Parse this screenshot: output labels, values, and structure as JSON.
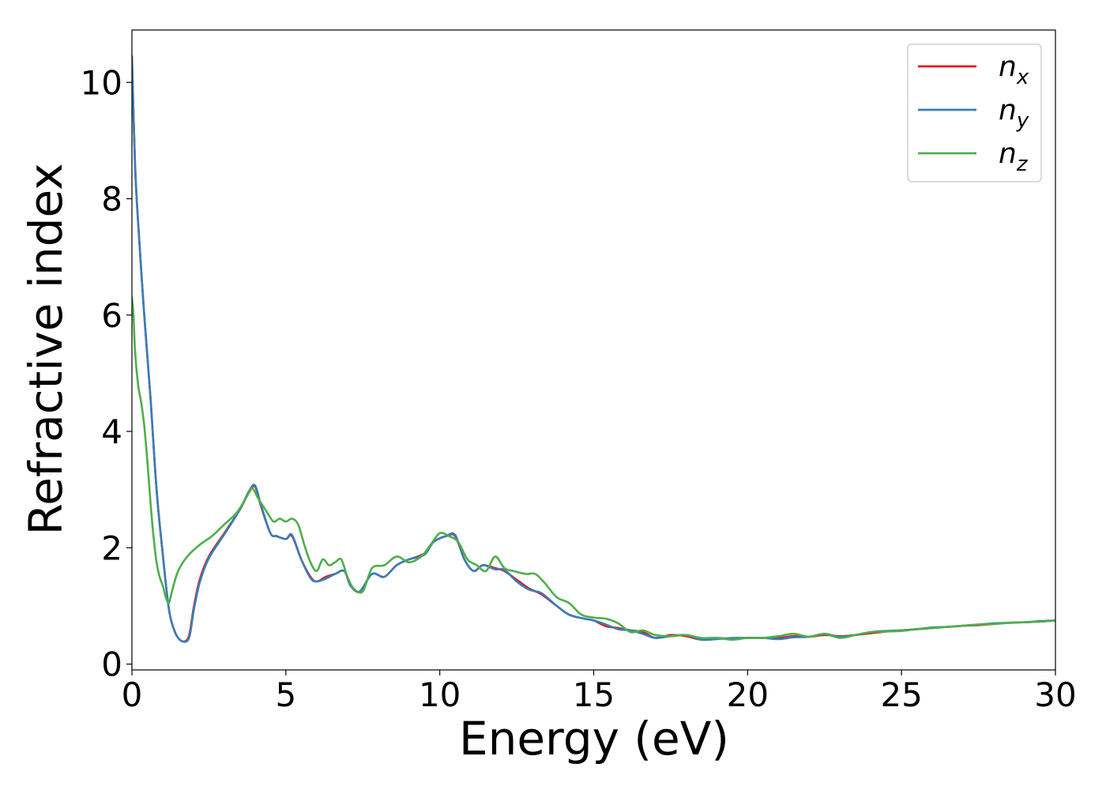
{
  "chart_data": {
    "type": "line",
    "title": "",
    "xlabel": "Energy (eV)",
    "ylabel": "Refractive index",
    "xlim": [
      0,
      30
    ],
    "ylim": [
      -0.1,
      10.9
    ],
    "grid": false,
    "legend_position": "top-right",
    "x_ticks": [
      0,
      5,
      10,
      15,
      20,
      25,
      30
    ],
    "x_tick_labels": [
      "0",
      "5",
      "10",
      "15",
      "20",
      "25",
      "30"
    ],
    "y_ticks": [
      0,
      2,
      4,
      6,
      8,
      10
    ],
    "y_tick_labels": [
      "0",
      "2",
      "4",
      "6",
      "8",
      "10"
    ],
    "series": [
      {
        "name": "n",
        "subscript": "x",
        "color": "#e41a1c",
        "x": [
          0.0,
          0.1,
          0.2,
          0.4,
          0.6,
          0.8,
          1.0,
          1.2,
          1.4,
          1.6,
          1.8,
          1.9,
          2.0,
          2.2,
          2.5,
          3.0,
          3.5,
          3.8,
          4.0,
          4.2,
          4.5,
          4.7,
          5.0,
          5.2,
          5.5,
          5.8,
          6.0,
          6.3,
          6.6,
          6.9,
          7.1,
          7.4,
          7.8,
          8.2,
          8.6,
          9.0,
          9.5,
          9.8,
          10.2,
          10.5,
          10.8,
          11.1,
          11.4,
          11.8,
          12.1,
          12.5,
          12.9,
          13.3,
          13.8,
          14.2,
          14.7,
          15.0,
          15.4,
          15.8,
          16.2,
          16.6,
          17.0,
          17.5,
          18.0,
          18.5,
          19.0,
          19.5,
          20.0,
          20.5,
          21.0,
          21.5,
          22.0,
          22.5,
          23.0,
          23.5,
          24.0,
          24.5,
          25.0,
          25.5,
          26.0,
          26.5,
          27.0,
          27.5,
          28.0,
          28.5,
          29.0,
          29.5,
          30.0
        ],
        "values": [
          10.45,
          8.6,
          7.6,
          6.0,
          4.6,
          3.0,
          1.9,
          0.95,
          0.55,
          0.4,
          0.42,
          0.6,
          0.95,
          1.45,
          1.85,
          2.25,
          2.65,
          2.95,
          3.05,
          2.7,
          2.25,
          2.2,
          2.15,
          2.2,
          1.8,
          1.5,
          1.42,
          1.5,
          1.55,
          1.6,
          1.35,
          1.25,
          1.55,
          1.5,
          1.7,
          1.8,
          1.9,
          2.1,
          2.2,
          2.2,
          1.8,
          1.6,
          1.7,
          1.65,
          1.6,
          1.45,
          1.3,
          1.2,
          1.0,
          0.85,
          0.78,
          0.75,
          0.65,
          0.62,
          0.58,
          0.55,
          0.45,
          0.5,
          0.48,
          0.42,
          0.45,
          0.43,
          0.45,
          0.45,
          0.45,
          0.48,
          0.47,
          0.5,
          0.48,
          0.5,
          0.53,
          0.56,
          0.58,
          0.6,
          0.62,
          0.64,
          0.66,
          0.67,
          0.69,
          0.71,
          0.72,
          0.73,
          0.75
        ]
      },
      {
        "name": "n",
        "subscript": "y",
        "color": "#377eb8",
        "x": [
          0.0,
          0.1,
          0.2,
          0.4,
          0.6,
          0.8,
          1.0,
          1.2,
          1.4,
          1.6,
          1.8,
          1.9,
          2.0,
          2.2,
          2.5,
          3.0,
          3.5,
          3.8,
          4.0,
          4.2,
          4.5,
          4.7,
          5.0,
          5.2,
          5.5,
          5.8,
          6.0,
          6.3,
          6.6,
          6.9,
          7.1,
          7.4,
          7.8,
          8.2,
          8.6,
          9.0,
          9.5,
          9.8,
          10.2,
          10.5,
          10.8,
          11.1,
          11.4,
          11.8,
          12.1,
          12.5,
          12.9,
          13.3,
          13.8,
          14.2,
          14.7,
          15.0,
          15.4,
          15.8,
          16.2,
          16.6,
          17.0,
          17.5,
          18.0,
          18.5,
          19.0,
          19.5,
          20.0,
          20.5,
          21.0,
          21.5,
          22.0,
          22.5,
          23.0,
          23.5,
          24.0,
          24.5,
          25.0,
          25.5,
          26.0,
          26.5,
          27.0,
          27.5,
          28.0,
          28.5,
          29.0,
          29.5,
          30.0
        ],
        "values": [
          10.45,
          8.6,
          7.6,
          6.0,
          4.6,
          3.0,
          1.9,
          0.95,
          0.55,
          0.4,
          0.4,
          0.55,
          0.9,
          1.4,
          1.82,
          2.23,
          2.65,
          2.97,
          3.07,
          2.72,
          2.25,
          2.2,
          2.15,
          2.22,
          1.8,
          1.48,
          1.42,
          1.47,
          1.55,
          1.6,
          1.35,
          1.25,
          1.55,
          1.5,
          1.7,
          1.8,
          1.88,
          2.1,
          2.2,
          2.22,
          1.8,
          1.6,
          1.7,
          1.63,
          1.62,
          1.42,
          1.28,
          1.22,
          1.0,
          0.85,
          0.78,
          0.75,
          0.68,
          0.6,
          0.58,
          0.52,
          0.45,
          0.48,
          0.5,
          0.42,
          0.43,
          0.45,
          0.45,
          0.45,
          0.43,
          0.46,
          0.47,
          0.52,
          0.47,
          0.5,
          0.55,
          0.57,
          0.58,
          0.6,
          0.63,
          0.64,
          0.66,
          0.68,
          0.7,
          0.71,
          0.72,
          0.74,
          0.75
        ]
      },
      {
        "name": "n",
        "subscript": "z",
        "color": "#4daf4a",
        "x": [
          0.0,
          0.05,
          0.1,
          0.2,
          0.3,
          0.4,
          0.5,
          0.6,
          0.7,
          0.8,
          0.9,
          1.0,
          1.1,
          1.2,
          1.3,
          1.5,
          1.8,
          2.2,
          2.6,
          3.0,
          3.4,
          3.7,
          3.9,
          4.1,
          4.4,
          4.6,
          4.8,
          5.0,
          5.2,
          5.4,
          5.6,
          5.8,
          6.0,
          6.2,
          6.4,
          6.6,
          6.8,
          7.0,
          7.2,
          7.5,
          7.8,
          8.2,
          8.6,
          9.0,
          9.4,
          9.7,
          10.0,
          10.3,
          10.6,
          10.9,
          11.2,
          11.5,
          11.8,
          12.1,
          12.4,
          12.8,
          13.1,
          13.4,
          13.8,
          14.2,
          14.6,
          15.0,
          15.4,
          15.8,
          16.2,
          16.6,
          17.0,
          17.5,
          18.0,
          18.5,
          19.0,
          19.5,
          20.0,
          20.5,
          21.0,
          21.5,
          22.0,
          22.5,
          23.0,
          23.5,
          24.0,
          24.5,
          25.0,
          25.5,
          26.0,
          26.5,
          27.0,
          27.5,
          28.0,
          28.5,
          29.0,
          29.5,
          30.0
        ],
        "values": [
          6.3,
          6.0,
          5.4,
          4.8,
          4.5,
          4.1,
          3.5,
          2.8,
          2.2,
          1.75,
          1.5,
          1.35,
          1.15,
          1.05,
          1.25,
          1.6,
          1.85,
          2.05,
          2.2,
          2.4,
          2.6,
          2.85,
          3.02,
          2.85,
          2.6,
          2.45,
          2.5,
          2.45,
          2.5,
          2.4,
          2.05,
          1.75,
          1.6,
          1.8,
          1.7,
          1.75,
          1.8,
          1.5,
          1.3,
          1.25,
          1.65,
          1.7,
          1.85,
          1.75,
          1.85,
          2.05,
          2.25,
          2.2,
          2.1,
          1.8,
          1.7,
          1.6,
          1.85,
          1.65,
          1.6,
          1.55,
          1.55,
          1.4,
          1.15,
          1.05,
          0.85,
          0.8,
          0.78,
          0.7,
          0.55,
          0.58,
          0.5,
          0.48,
          0.5,
          0.45,
          0.45,
          0.42,
          0.45,
          0.45,
          0.48,
          0.52,
          0.47,
          0.52,
          0.45,
          0.5,
          0.55,
          0.56,
          0.57,
          0.6,
          0.62,
          0.64,
          0.66,
          0.68,
          0.69,
          0.71,
          0.72,
          0.73,
          0.75
        ]
      }
    ]
  }
}
